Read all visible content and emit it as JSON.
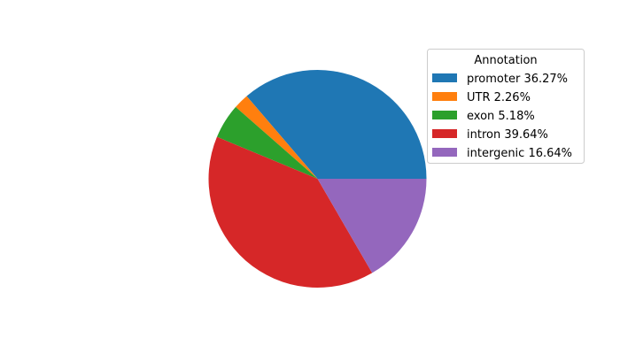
{
  "chart_data": {
    "type": "pie",
    "legend_title": "Annotation",
    "legend_position": "top-right",
    "start_angle_deg": 0,
    "direction": "counterclockwise",
    "slices": [
      {
        "label": "promoter 36.27%",
        "value": 36.27,
        "color": "#1f77b4"
      },
      {
        "label": "UTR 2.26%",
        "value": 2.26,
        "color": "#ff7f0e"
      },
      {
        "label": "exon 5.18%",
        "value": 5.18,
        "color": "#2ca02c"
      },
      {
        "label": "intron 39.64%",
        "value": 39.64,
        "color": "#d62728"
      },
      {
        "label": "intergenic 16.64%",
        "value": 16.64,
        "color": "#9467bd"
      }
    ]
  }
}
